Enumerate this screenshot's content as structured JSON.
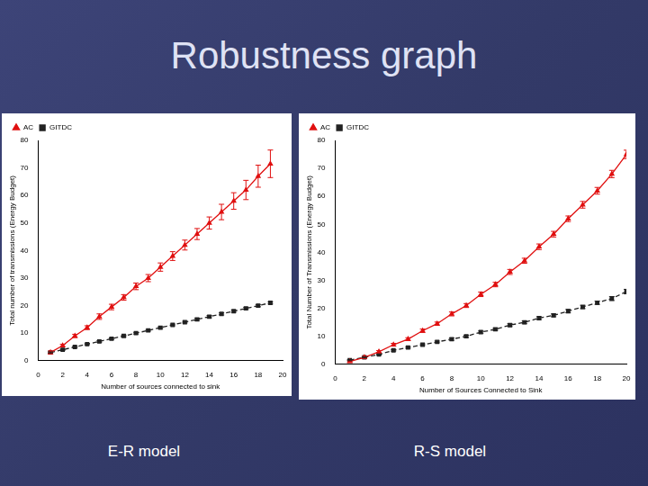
{
  "title": "Robustness graph",
  "chart_data": [
    {
      "type": "line",
      "caption": "E-R model",
      "x_label": "Number of sources connected to sink",
      "y_label": "Total number of transmissions (Energy Budget)",
      "x": [
        1,
        2,
        3,
        4,
        5,
        6,
        7,
        8,
        9,
        10,
        11,
        12,
        13,
        14,
        15,
        16,
        17,
        18,
        19
      ],
      "xlim": [
        0,
        20
      ],
      "xticks": [
        0,
        2,
        4,
        6,
        8,
        10,
        12,
        14,
        16,
        18,
        20
      ],
      "ylim": [
        0,
        80
      ],
      "yticks": [
        0,
        10,
        20,
        30,
        40,
        50,
        60,
        70,
        80
      ],
      "grid": false,
      "legend": "upper left",
      "series": [
        {
          "name": "AC",
          "color": "#e01010",
          "marker": "triangle",
          "line_style": "solid",
          "values": [
            3,
            5.5,
            9,
            12,
            16,
            19.5,
            23,
            27,
            30,
            34,
            38,
            42,
            46,
            50,
            54,
            58,
            62,
            67,
            71.5
          ],
          "errors": [
            0.5,
            0.5,
            0.6,
            0.7,
            1,
            1,
            1,
            1.2,
            1.3,
            1.5,
            1.6,
            1.8,
            2,
            2.2,
            2.8,
            3,
            3.5,
            4,
            5
          ]
        },
        {
          "name": "GITDC",
          "color": "#222222",
          "marker": "square",
          "line_style": "dashed",
          "values": [
            3,
            4,
            5,
            6,
            7,
            8,
            9,
            10,
            11,
            12,
            13,
            14,
            15,
            16,
            17,
            18,
            19,
            20,
            21
          ],
          "errors": [
            0.2,
            0.2,
            0.2,
            0.2,
            0.3,
            0.3,
            0.3,
            0.3,
            0.3,
            0.3,
            0.3,
            0.3,
            0.4,
            0.4,
            0.4,
            0.4,
            0.4,
            0.4,
            0.4
          ]
        }
      ]
    },
    {
      "type": "line",
      "caption": "R-S model",
      "x_label": "Number of Sources Connected to Sink",
      "y_label": "Total Number of Transmissions (Energy Budget)",
      "x": [
        1,
        2,
        3,
        4,
        5,
        6,
        7,
        8,
        9,
        10,
        11,
        12,
        13,
        14,
        15,
        16,
        17,
        18,
        19,
        20
      ],
      "xlim": [
        0,
        20
      ],
      "xticks": [
        0,
        2,
        4,
        6,
        8,
        10,
        12,
        14,
        16,
        18,
        20
      ],
      "ylim": [
        0,
        80
      ],
      "yticks": [
        0,
        10,
        20,
        30,
        40,
        50,
        60,
        70,
        80
      ],
      "grid": false,
      "legend": "upper left",
      "series": [
        {
          "name": "AC",
          "color": "#e01010",
          "marker": "triangle",
          "line_style": "solid",
          "values": [
            1,
            2.5,
            4.5,
            7,
            9,
            12,
            14.5,
            18,
            21,
            25,
            28.5,
            33,
            37,
            42,
            46.5,
            52,
            57,
            62,
            68,
            75
          ],
          "errors": [
            0.3,
            0.3,
            0.4,
            0.5,
            0.5,
            0.6,
            0.6,
            0.7,
            0.7,
            0.8,
            0.8,
            0.9,
            0.9,
            1,
            1,
            1,
            1.2,
            1.2,
            1.3,
            1.5
          ]
        },
        {
          "name": "GITDC",
          "color": "#222222",
          "marker": "square",
          "line_style": "dashed",
          "values": [
            1.5,
            2.5,
            3.5,
            5,
            6,
            7,
            8,
            9,
            10,
            11.5,
            12.5,
            14,
            15,
            16.5,
            17.5,
            19,
            20.5,
            22,
            23.5,
            26
          ],
          "errors": [
            0.2,
            0.2,
            0.2,
            0.3,
            0.3,
            0.3,
            0.3,
            0.4,
            0.4,
            0.4,
            0.4,
            0.5,
            0.5,
            0.5,
            0.5,
            0.6,
            0.6,
            0.6,
            0.7,
            0.8
          ]
        }
      ]
    }
  ]
}
